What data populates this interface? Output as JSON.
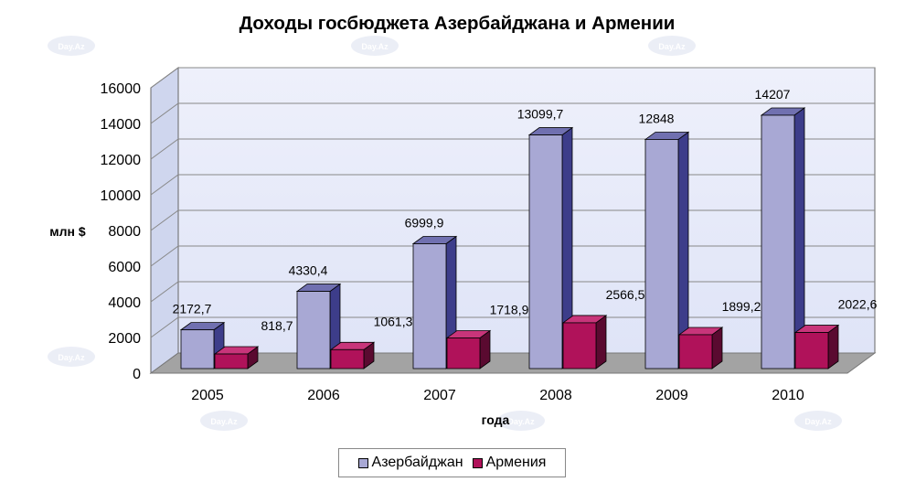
{
  "chart_data": {
    "type": "bar",
    "title": "Доходы госбюджета Азербайджана и Армении",
    "xlabel": "года",
    "ylabel": "млн $",
    "ylim": [
      0,
      16000
    ],
    "yticks": [
      "0",
      "2000",
      "4000",
      "6000",
      "8000",
      "10000",
      "12000",
      "14000",
      "16000"
    ],
    "categories": [
      "2005",
      "2006",
      "2007",
      "2008",
      "2009",
      "2010"
    ],
    "series": [
      {
        "name": "Азербайджан",
        "values": [
          2172.7,
          4330.4,
          6999.9,
          13099.7,
          12848,
          14207
        ],
        "labels": [
          "2172,7",
          "4330,4",
          "6999,9",
          "13099,7",
          "12848",
          "14207"
        ],
        "color": "#a8a8d4",
        "side_color": "#3d3d8a",
        "top_color": "#7070b0"
      },
      {
        "name": "Армения",
        "values": [
          818.7,
          1061.3,
          1718.9,
          2566.5,
          1899.2,
          2022.6
        ],
        "labels": [
          "818,7",
          "1061,3",
          "1718,9",
          "2566,5",
          "1899,2",
          "2022,6"
        ],
        "color": "#b0125a",
        "side_color": "#5a0a30",
        "top_color": "#c8357a"
      }
    ],
    "legend_position": "bottom",
    "grid": true,
    "watermark": "Day.Az"
  }
}
